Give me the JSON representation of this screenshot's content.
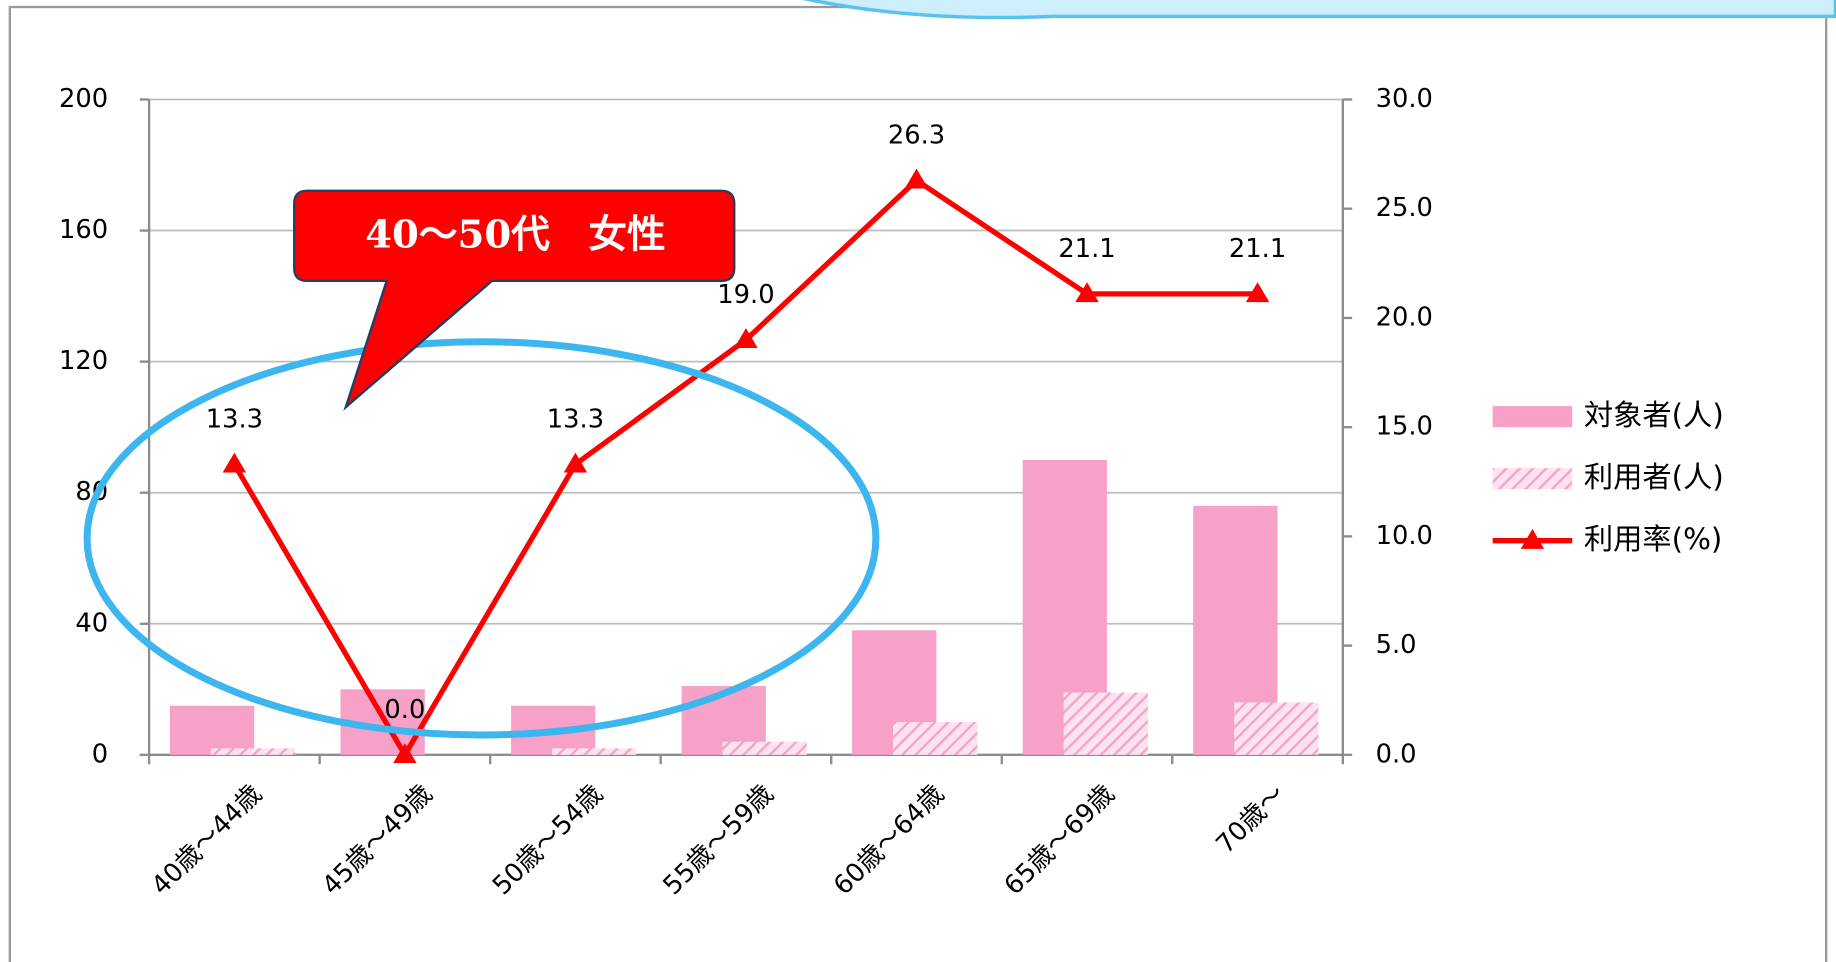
{
  "chart_data": {
    "type": "bar-line",
    "categories": [
      "40歳～44歳",
      "45歳～49歳",
      "50歳～54歳",
      "55歳～59歳",
      "60歳～64歳",
      "65歳～69歳",
      "70歳～"
    ],
    "series": [
      {
        "name": "対象者(人)",
        "color": "#f7a1c8",
        "type": "bar",
        "values": [
          15,
          20,
          15,
          21,
          38,
          90,
          76
        ]
      },
      {
        "name": "利用者(人)",
        "color": "#f7a1c8",
        "type": "bar",
        "pattern": "hatch",
        "values": [
          2,
          0,
          2,
          4,
          10,
          19,
          16
        ]
      },
      {
        "name": "利用率(%)",
        "color": "#ff0000",
        "type": "line",
        "axis": "y2",
        "values": [
          13.3,
          0,
          13.3,
          19,
          26.3,
          21.1,
          21.1
        ],
        "value_labels": [
          "13.3",
          "0.0",
          "13.3",
          "19.0",
          "26.3",
          "21.1",
          "21.1"
        ]
      }
    ],
    "ylim": [
      0,
      200
    ],
    "yticks": [
      0,
      40,
      80,
      120,
      160,
      200
    ],
    "y2lim": [
      0,
      30
    ],
    "y2ticks": [
      {
        "value": 0,
        "label": "0.0"
      },
      {
        "value": 5,
        "label": "5.0"
      },
      {
        "value": 10,
        "label": "10.0"
      },
      {
        "value": 15,
        "label": "15.0"
      },
      {
        "value": 20,
        "label": "20.0"
      },
      {
        "value": 25,
        "label": "25.0"
      },
      {
        "value": 30,
        "label": "30.0"
      }
    ],
    "grid": true,
    "legend": "right",
    "annotation": "40～50代　女性"
  }
}
